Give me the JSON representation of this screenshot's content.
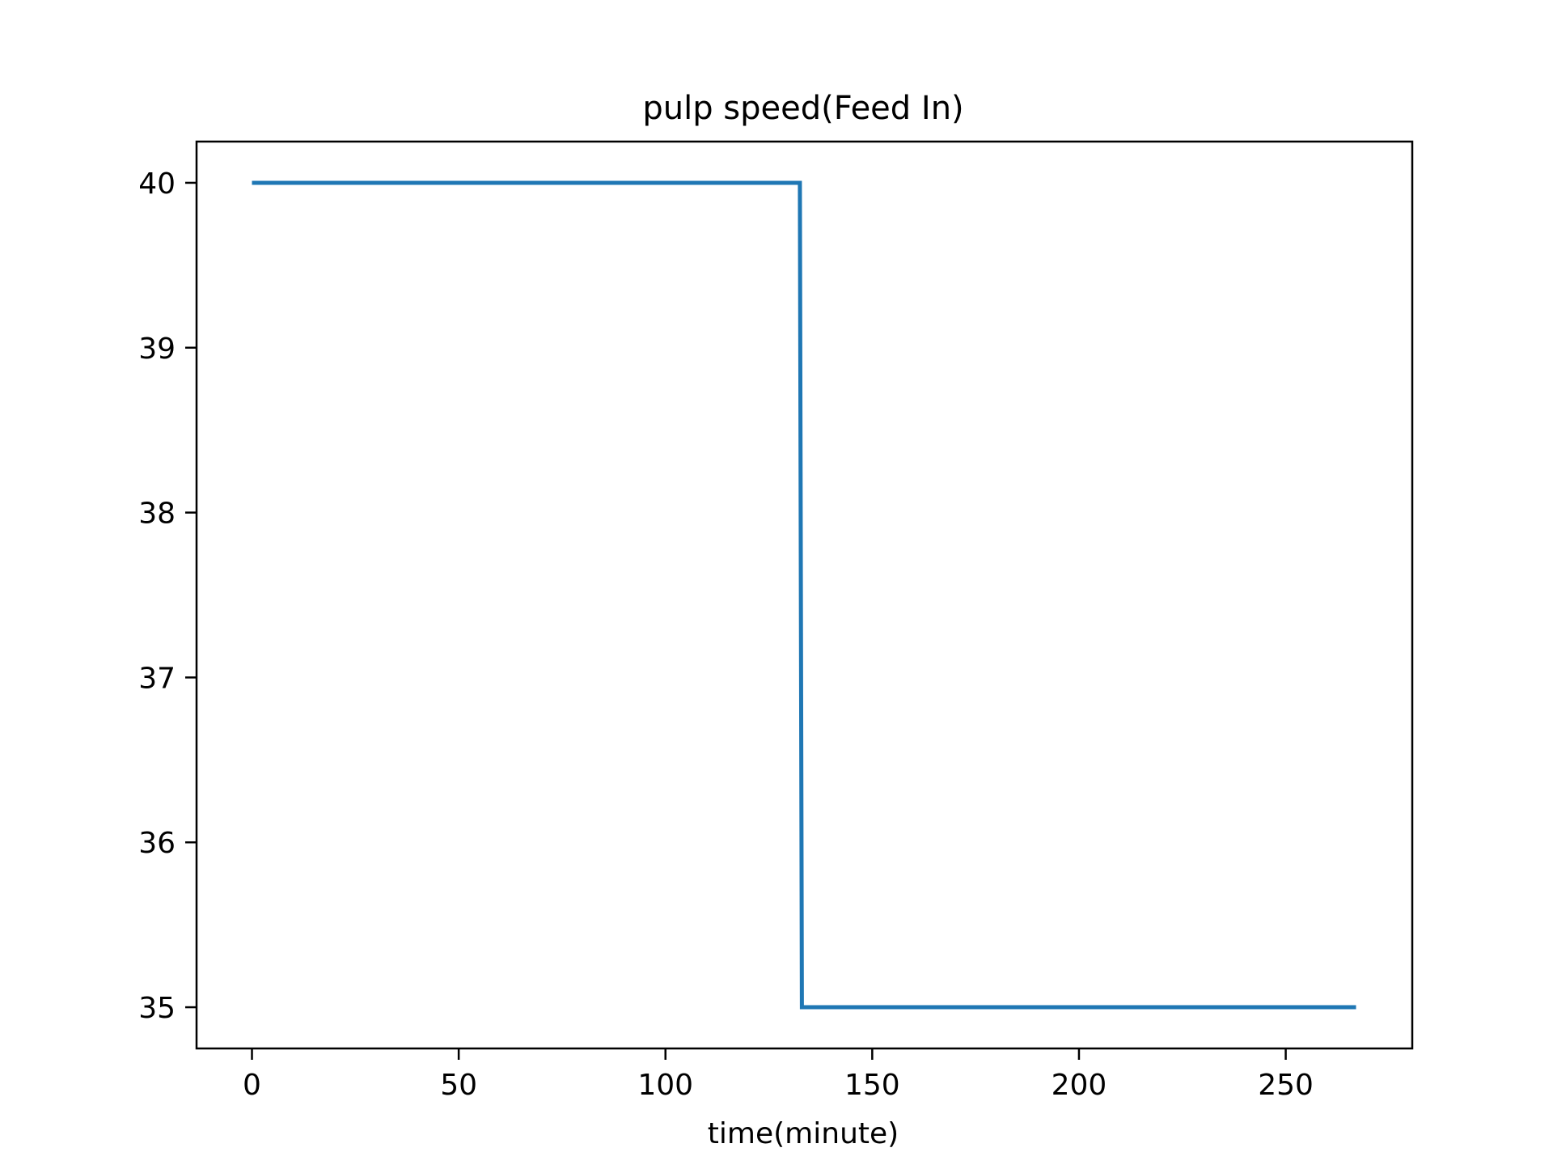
{
  "chart_data": {
    "type": "line",
    "title": "pulp speed(Feed In)",
    "xlabel": "time(minute)",
    "ylabel": "",
    "xlim": [
      -13.4,
      280.6
    ],
    "ylim": [
      34.75,
      40.25
    ],
    "x_ticks": [
      0,
      50,
      100,
      150,
      200,
      250
    ],
    "y_ticks": [
      35,
      36,
      37,
      38,
      39,
      40
    ],
    "grid": false,
    "legend": "none",
    "series": [
      {
        "color": "#1f77b4",
        "x": [
          0,
          132.5,
          133,
          267
        ],
        "y": [
          40,
          40,
          35,
          35
        ]
      }
    ]
  }
}
